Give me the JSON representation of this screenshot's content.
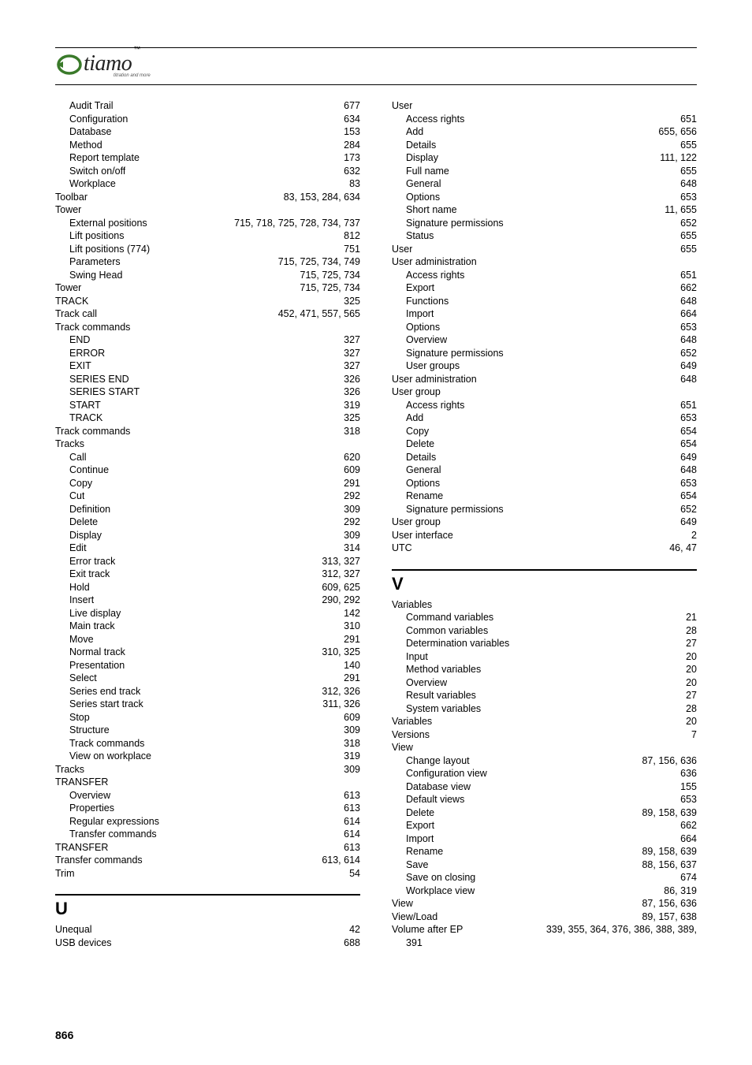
{
  "logo": {
    "text": "tiamo",
    "tm": "™",
    "sub": "titration and more"
  },
  "pageNumber": "866",
  "left": {
    "blocks": [
      {
        "type": "entries",
        "items": [
          {
            "l": 1,
            "label": "Audit Trail",
            "pages": "677"
          },
          {
            "l": 1,
            "label": "Configuration",
            "pages": "634"
          },
          {
            "l": 1,
            "label": "Database",
            "pages": "153"
          },
          {
            "l": 1,
            "label": "Method",
            "pages": "284"
          },
          {
            "l": 1,
            "label": "Report template",
            "pages": "173"
          },
          {
            "l": 1,
            "label": "Switch on/off",
            "pages": "632"
          },
          {
            "l": 1,
            "label": "Workplace",
            "pages": "83"
          },
          {
            "l": 0,
            "label": "Toolbar",
            "pages": "83, 153, 284, 634"
          },
          {
            "l": 0,
            "label": "Tower",
            "pages": ""
          },
          {
            "l": 1,
            "label": "External positions",
            "pages": "715, 718, 725, 728, 734, 737"
          },
          {
            "l": 1,
            "label": "Lift positions",
            "pages": "812"
          },
          {
            "l": 1,
            "label": "Lift positions (774)",
            "pages": "751"
          },
          {
            "l": 1,
            "label": "Parameters",
            "pages": "715, 725, 734, 749"
          },
          {
            "l": 1,
            "label": "Swing Head",
            "pages": "715, 725, 734"
          },
          {
            "l": 0,
            "label": "Tower",
            "pages": "715, 725, 734"
          },
          {
            "l": 0,
            "label": "TRACK",
            "pages": "325"
          },
          {
            "l": 0,
            "label": "Track call",
            "pages": "452, 471, 557, 565"
          },
          {
            "l": 0,
            "label": "Track commands",
            "pages": ""
          },
          {
            "l": 1,
            "label": "END",
            "pages": "327"
          },
          {
            "l": 1,
            "label": "ERROR",
            "pages": "327"
          },
          {
            "l": 1,
            "label": "EXIT",
            "pages": "327"
          },
          {
            "l": 1,
            "label": "SERIES END",
            "pages": "326"
          },
          {
            "l": 1,
            "label": "SERIES START",
            "pages": "326"
          },
          {
            "l": 1,
            "label": "START",
            "pages": "319"
          },
          {
            "l": 1,
            "label": "TRACK",
            "pages": "325"
          },
          {
            "l": 0,
            "label": "Track commands",
            "pages": "318"
          },
          {
            "l": 0,
            "label": "Tracks",
            "pages": ""
          },
          {
            "l": 1,
            "label": "Call",
            "pages": "620"
          },
          {
            "l": 1,
            "label": "Continue",
            "pages": "609"
          },
          {
            "l": 1,
            "label": "Copy",
            "pages": "291"
          },
          {
            "l": 1,
            "label": "Cut",
            "pages": "292"
          },
          {
            "l": 1,
            "label": "Definition",
            "pages": "309"
          },
          {
            "l": 1,
            "label": "Delete",
            "pages": "292"
          },
          {
            "l": 1,
            "label": "Display",
            "pages": "309"
          },
          {
            "l": 1,
            "label": "Edit",
            "pages": "314"
          },
          {
            "l": 1,
            "label": "Error track",
            "pages": "313, 327"
          },
          {
            "l": 1,
            "label": "Exit track",
            "pages": "312, 327"
          },
          {
            "l": 1,
            "label": "Hold",
            "pages": "609, 625"
          },
          {
            "l": 1,
            "label": "Insert",
            "pages": "290, 292"
          },
          {
            "l": 1,
            "label": "Live display",
            "pages": "142"
          },
          {
            "l": 1,
            "label": "Main track",
            "pages": "310"
          },
          {
            "l": 1,
            "label": "Move",
            "pages": "291"
          },
          {
            "l": 1,
            "label": "Normal track",
            "pages": "310, 325"
          },
          {
            "l": 1,
            "label": "Presentation",
            "pages": "140"
          },
          {
            "l": 1,
            "label": "Select",
            "pages": "291"
          },
          {
            "l": 1,
            "label": "Series end track",
            "pages": "312, 326"
          },
          {
            "l": 1,
            "label": "Series start track",
            "pages": "311, 326"
          },
          {
            "l": 1,
            "label": "Stop",
            "pages": "609"
          },
          {
            "l": 1,
            "label": "Structure",
            "pages": "309"
          },
          {
            "l": 1,
            "label": "Track commands",
            "pages": "318"
          },
          {
            "l": 1,
            "label": "View on workplace",
            "pages": "319"
          },
          {
            "l": 0,
            "label": "Tracks",
            "pages": "309"
          },
          {
            "l": 0,
            "label": "TRANSFER",
            "pages": ""
          },
          {
            "l": 1,
            "label": "Overview",
            "pages": "613"
          },
          {
            "l": 1,
            "label": "Properties",
            "pages": "613"
          },
          {
            "l": 1,
            "label": "Regular expressions",
            "pages": "614"
          },
          {
            "l": 1,
            "label": "Transfer commands",
            "pages": "614"
          },
          {
            "l": 0,
            "label": "TRANSFER",
            "pages": "613"
          },
          {
            "l": 0,
            "label": "Transfer commands",
            "pages": "613, 614"
          },
          {
            "l": 0,
            "label": "Trim",
            "pages": "54"
          }
        ]
      },
      {
        "type": "letter",
        "letter": "U"
      },
      {
        "type": "entries",
        "items": [
          {
            "l": 0,
            "label": "Unequal",
            "pages": "42"
          },
          {
            "l": 0,
            "label": "USB devices",
            "pages": "688"
          }
        ]
      }
    ]
  },
  "right": {
    "blocks": [
      {
        "type": "entries",
        "items": [
          {
            "l": 0,
            "label": "User",
            "pages": ""
          },
          {
            "l": 1,
            "label": "Access rights",
            "pages": "651"
          },
          {
            "l": 1,
            "label": "Add",
            "pages": "655, 656"
          },
          {
            "l": 1,
            "label": "Details",
            "pages": "655"
          },
          {
            "l": 1,
            "label": "Display",
            "pages": "111, 122"
          },
          {
            "l": 1,
            "label": "Full name",
            "pages": "655"
          },
          {
            "l": 1,
            "label": "General",
            "pages": "648"
          },
          {
            "l": 1,
            "label": "Options",
            "pages": "653"
          },
          {
            "l": 1,
            "label": "Short name",
            "pages": "11, 655"
          },
          {
            "l": 1,
            "label": "Signature permissions",
            "pages": "652"
          },
          {
            "l": 1,
            "label": "Status",
            "pages": "655"
          },
          {
            "l": 0,
            "label": "User",
            "pages": "655"
          },
          {
            "l": 0,
            "label": "User administration",
            "pages": ""
          },
          {
            "l": 1,
            "label": "Access rights",
            "pages": "651"
          },
          {
            "l": 1,
            "label": "Export",
            "pages": "662"
          },
          {
            "l": 1,
            "label": "Functions",
            "pages": "648"
          },
          {
            "l": 1,
            "label": "Import",
            "pages": "664"
          },
          {
            "l": 1,
            "label": "Options",
            "pages": "653"
          },
          {
            "l": 1,
            "label": "Overview",
            "pages": "648"
          },
          {
            "l": 1,
            "label": "Signature permissions",
            "pages": "652"
          },
          {
            "l": 1,
            "label": "User groups",
            "pages": "649"
          },
          {
            "l": 0,
            "label": "User administration",
            "pages": "648"
          },
          {
            "l": 0,
            "label": "User group",
            "pages": ""
          },
          {
            "l": 1,
            "label": "Access rights",
            "pages": "651"
          },
          {
            "l": 1,
            "label": "Add",
            "pages": "653"
          },
          {
            "l": 1,
            "label": "Copy",
            "pages": "654"
          },
          {
            "l": 1,
            "label": "Delete",
            "pages": "654"
          },
          {
            "l": 1,
            "label": "Details",
            "pages": "649"
          },
          {
            "l": 1,
            "label": "General",
            "pages": "648"
          },
          {
            "l": 1,
            "label": "Options",
            "pages": "653"
          },
          {
            "l": 1,
            "label": "Rename",
            "pages": "654"
          },
          {
            "l": 1,
            "label": "Signature permissions",
            "pages": "652"
          },
          {
            "l": 0,
            "label": "User group",
            "pages": "649"
          },
          {
            "l": 0,
            "label": "User interface",
            "pages": "2"
          },
          {
            "l": 0,
            "label": "UTC",
            "pages": "46, 47"
          }
        ]
      },
      {
        "type": "letter",
        "letter": "V"
      },
      {
        "type": "entries",
        "items": [
          {
            "l": 0,
            "label": "Variables",
            "pages": ""
          },
          {
            "l": 1,
            "label": "Command variables",
            "pages": "21"
          },
          {
            "l": 1,
            "label": "Common variables",
            "pages": "28"
          },
          {
            "l": 1,
            "label": "Determination variables",
            "pages": "27"
          },
          {
            "l": 1,
            "label": "Input",
            "pages": "20"
          },
          {
            "l": 1,
            "label": "Method variables",
            "pages": "20"
          },
          {
            "l": 1,
            "label": "Overview",
            "pages": "20"
          },
          {
            "l": 1,
            "label": "Result variables",
            "pages": "27"
          },
          {
            "l": 1,
            "label": "System variables",
            "pages": "28"
          },
          {
            "l": 0,
            "label": "Variables",
            "pages": "20"
          },
          {
            "l": 0,
            "label": "Versions",
            "pages": "7"
          },
          {
            "l": 0,
            "label": "View",
            "pages": ""
          },
          {
            "l": 1,
            "label": "Change layout",
            "pages": "87, 156, 636"
          },
          {
            "l": 1,
            "label": "Configuration view",
            "pages": "636"
          },
          {
            "l": 1,
            "label": "Database view",
            "pages": "155"
          },
          {
            "l": 1,
            "label": "Default views",
            "pages": "653"
          },
          {
            "l": 1,
            "label": "Delete",
            "pages": "89, 158, 639"
          },
          {
            "l": 1,
            "label": "Export",
            "pages": "662"
          },
          {
            "l": 1,
            "label": "Import",
            "pages": "664"
          },
          {
            "l": 1,
            "label": "Rename",
            "pages": "89, 158, 639"
          },
          {
            "l": 1,
            "label": "Save",
            "pages": "88, 156, 637"
          },
          {
            "l": 1,
            "label": "Save on closing",
            "pages": "674"
          },
          {
            "l": 1,
            "label": "Workplace view",
            "pages": "86, 319"
          },
          {
            "l": 0,
            "label": "View",
            "pages": "87, 156, 636"
          },
          {
            "l": 0,
            "label": "View/Load",
            "pages": "89, 157, 638"
          }
        ]
      },
      {
        "type": "special",
        "label1": "Volume after EP",
        "pages1": "339, 355, 364, 376, 386, 388, 389,",
        "label2": "391"
      }
    ]
  }
}
